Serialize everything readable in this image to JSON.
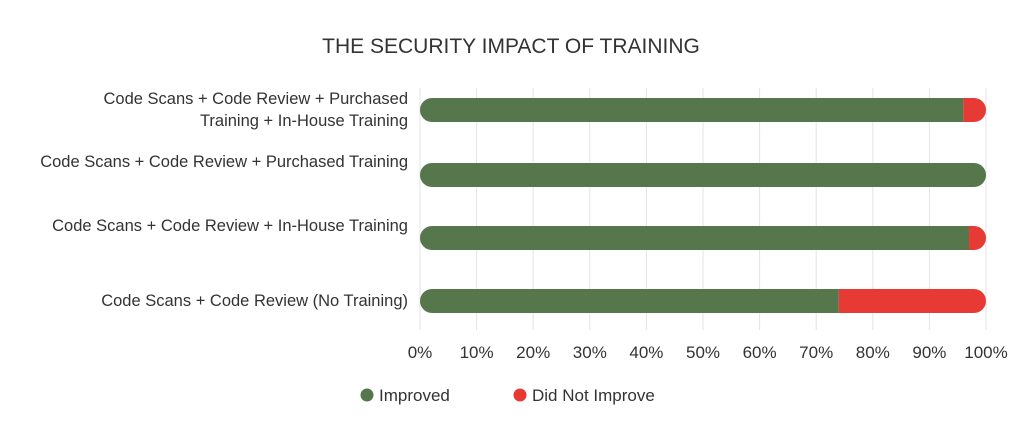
{
  "chart_data": {
    "type": "bar",
    "orientation": "horizontal",
    "stacked": true,
    "percent": true,
    "title": "THE SECURITY IMPACT OF TRAINING",
    "categories": [
      [
        "Code Scans + Code Review + Purchased",
        "Training + In-House Training"
      ],
      [
        "Code Scans + Code Review + Purchased Training"
      ],
      [
        "Code Scans + Code Review + In-House Training"
      ],
      [
        "Code Scans + Code Review (No Training)"
      ]
    ],
    "series": [
      {
        "name": "Improved",
        "color": "#55774b",
        "values": [
          96,
          100,
          97,
          74
        ]
      },
      {
        "name": "Did Not Improve",
        "color": "#e83a35",
        "values": [
          4,
          0,
          3,
          26
        ]
      }
    ],
    "xlim": [
      0,
      100
    ],
    "xticks": [
      "0%",
      "10%",
      "20%",
      "30%",
      "40%",
      "50%",
      "60%",
      "70%",
      "80%",
      "90%",
      "100%"
    ],
    "grid": true,
    "legend_position": "bottom"
  }
}
